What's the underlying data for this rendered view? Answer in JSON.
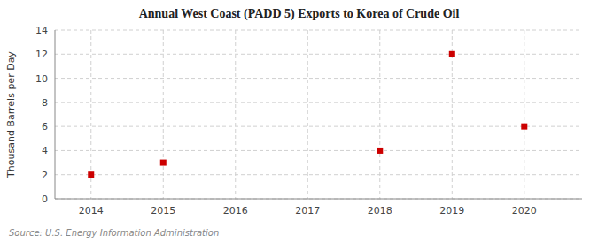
{
  "chart_data": {
    "type": "scatter",
    "title": "Annual West Coast (PADD 5) Exports to Korea of Crude Oil",
    "ylabel": "Thousand Barrels per Day",
    "source": "Source: U.S. Energy Information Administration",
    "x": [
      2014,
      2015,
      2018,
      2019,
      2020
    ],
    "values": [
      2,
      3,
      4,
      12,
      6
    ],
    "color": "#cc0000",
    "marker": "square",
    "xlim": [
      2013.5,
      2020.8
    ],
    "ylim": [
      0,
      14
    ],
    "xticks": [
      2014,
      2015,
      2016,
      2017,
      2018,
      2019,
      2020
    ],
    "yticks": [
      0,
      2,
      4,
      6,
      8,
      10,
      12,
      14
    ],
    "grid": true
  }
}
